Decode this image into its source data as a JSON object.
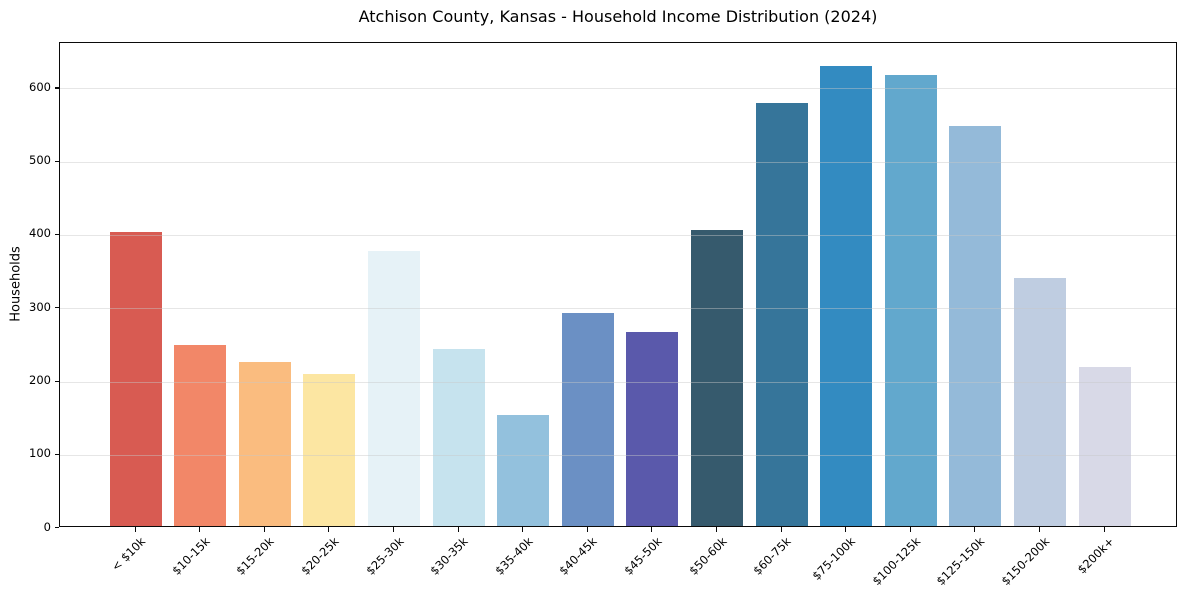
{
  "chart_data": {
    "type": "bar",
    "title": "Atchison County, Kansas - Household Income Distribution (2024)",
    "xlabel": "",
    "ylabel": "Households",
    "categories": [
      "< $10k",
      "$10-15k",
      "$15-20k",
      "$20-25k",
      "$25-30k",
      "$30-35k",
      "$35-40k",
      "$40-45k",
      "$45-50k",
      "$50-60k",
      "$60-75k",
      "$75-100k",
      "$100-125k",
      "$125-150k",
      "$150-200k",
      "$200k+"
    ],
    "values": [
      402,
      247,
      224,
      208,
      376,
      241,
      152,
      291,
      265,
      404,
      578,
      628,
      616,
      546,
      338,
      217
    ],
    "bar_colors": [
      "#d85b52",
      "#f28768",
      "#fabc7f",
      "#fce6a2",
      "#e6f2f7",
      "#c6e3ee",
      "#93c1dd",
      "#6b90c4",
      "#5a59ab",
      "#365a6d",
      "#36759a",
      "#338bc1",
      "#62a8cd",
      "#94bad9",
      "#bfcde1",
      "#d8d9e7"
    ],
    "yticks": [
      0,
      100,
      200,
      300,
      400,
      500,
      600
    ],
    "ylim": [
      0,
      662
    ],
    "grid": "horizontal",
    "grid_above_bars": true,
    "legend": "none",
    "background_color": "#ffffff",
    "spine_color": "#0a0a0a",
    "gridline_color": "#e8e8e8",
    "x_tick_rotation_deg": 45
  }
}
